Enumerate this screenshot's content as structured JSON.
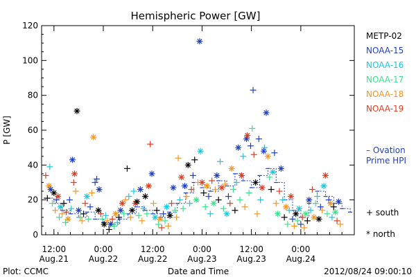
{
  "chart_data": {
    "type": "scatter",
    "title": "Hemispheric Power [GW]",
    "xlabel": "Date and Time",
    "ylabel": "P [GW]",
    "ylim": [
      0,
      120
    ],
    "yticks": [
      0,
      20,
      40,
      60,
      80,
      100,
      120
    ],
    "xlim_hours": [
      -3,
      73
    ],
    "xticks": [
      {
        "h": 0,
        "l1": "12:00",
        "l2": "Aug.21"
      },
      {
        "h": 12,
        "l1": "0:00",
        "l2": "Aug.22"
      },
      {
        "h": 24,
        "l1": "12:00",
        "l2": "Aug.22"
      },
      {
        "h": 36,
        "l1": "0:00",
        "l2": "Aug.23"
      },
      {
        "h": 48,
        "l1": "12:00",
        "l2": "Aug.23"
      },
      {
        "h": 60,
        "l1": "0:00",
        "l2": "Aug.24"
      }
    ],
    "series": [
      {
        "name": "METP-02",
        "color": "#000000"
      },
      {
        "name": "NOAA-15",
        "color": "#1f3fbf"
      },
      {
        "name": "NOAA-16",
        "color": "#18c8dc"
      },
      {
        "name": "NOAA-17",
        "color": "#3ce08c"
      },
      {
        "name": "NOAA-18",
        "color": "#f0962a"
      },
      {
        "name": "NOAA-19",
        "color": "#e03a1e"
      }
    ],
    "ovation": {
      "label1": "– Ovation",
      "label2": "Prime HPI",
      "color": "#1f3fbf",
      "points": [
        [
          -2,
          21
        ],
        [
          0,
          18
        ],
        [
          2,
          14
        ],
        [
          4,
          12
        ],
        [
          6,
          10
        ],
        [
          8,
          13
        ],
        [
          10,
          9
        ],
        [
          12,
          7
        ],
        [
          14,
          6
        ],
        [
          16,
          9
        ],
        [
          18,
          12
        ],
        [
          20,
          16
        ],
        [
          22,
          14
        ],
        [
          24,
          12
        ],
        [
          26,
          10
        ],
        [
          28,
          13
        ],
        [
          30,
          18
        ],
        [
          32,
          24
        ],
        [
          34,
          30
        ],
        [
          36,
          27
        ],
        [
          38,
          25
        ],
        [
          40,
          31
        ],
        [
          42,
          28
        ],
        [
          44,
          35
        ],
        [
          46,
          31
        ],
        [
          48,
          27
        ],
        [
          50,
          34
        ],
        [
          52,
          38
        ],
        [
          54,
          30
        ],
        [
          56,
          20
        ],
        [
          58,
          14
        ],
        [
          60,
          10
        ],
        [
          62,
          18
        ],
        [
          64,
          25
        ],
        [
          66,
          22
        ],
        [
          68,
          18
        ],
        [
          70,
          15
        ],
        [
          72,
          13
        ]
      ]
    },
    "markers": {
      "south_label": "+ south",
      "north_label": "* north"
    },
    "points": [
      {
        "x": -2.0,
        "y": 34,
        "s": 5,
        "m": "+"
      },
      {
        "x": -1.6,
        "y": 21,
        "s": 0,
        "m": "+"
      },
      {
        "x": -1.2,
        "y": 28,
        "s": 4,
        "m": "*"
      },
      {
        "x": -1.0,
        "y": 39,
        "s": 2,
        "m": "+"
      },
      {
        "x": -0.8,
        "y": 26,
        "s": 1,
        "m": "*"
      },
      {
        "x": -0.4,
        "y": 18,
        "s": 3,
        "m": "+"
      },
      {
        "x": 0.0,
        "y": 24,
        "s": 0,
        "m": "*"
      },
      {
        "x": 0.3,
        "y": 14,
        "s": 4,
        "m": "+"
      },
      {
        "x": 0.6,
        "y": 20,
        "s": 1,
        "m": "+"
      },
      {
        "x": 1.0,
        "y": 22,
        "s": 5,
        "m": "*"
      },
      {
        "x": 1.3,
        "y": 10,
        "s": 3,
        "m": "+"
      },
      {
        "x": 1.6,
        "y": 16,
        "s": 2,
        "m": "*"
      },
      {
        "x": 2.0,
        "y": 12,
        "s": 4,
        "m": "+"
      },
      {
        "x": 2.4,
        "y": 18,
        "s": 0,
        "m": "+"
      },
      {
        "x": 2.8,
        "y": 7,
        "s": 3,
        "m": "+"
      },
      {
        "x": 3.0,
        "y": 13,
        "s": 5,
        "m": "+"
      },
      {
        "x": 3.4,
        "y": 9,
        "s": 4,
        "m": "*"
      },
      {
        "x": 3.8,
        "y": 20,
        "s": 1,
        "m": "+"
      },
      {
        "x": 4.2,
        "y": 15,
        "s": 2,
        "m": "+"
      },
      {
        "x": 4.5,
        "y": 43,
        "s": 1,
        "m": "*"
      },
      {
        "x": 4.8,
        "y": 30,
        "s": 5,
        "m": "+"
      },
      {
        "x": 5.0,
        "y": 35,
        "s": 5,
        "m": "*"
      },
      {
        "x": 5.3,
        "y": 25,
        "s": 4,
        "m": "+"
      },
      {
        "x": 5.6,
        "y": 71,
        "s": 0,
        "m": "*"
      },
      {
        "x": 6.0,
        "y": 14,
        "s": 1,
        "m": "*"
      },
      {
        "x": 6.4,
        "y": 10,
        "s": 3,
        "m": "+"
      },
      {
        "x": 6.8,
        "y": 8,
        "s": 4,
        "m": "+"
      },
      {
        "x": 7.2,
        "y": 12,
        "s": 0,
        "m": "+"
      },
      {
        "x": 7.6,
        "y": 18,
        "s": 5,
        "m": "+"
      },
      {
        "x": 8.0,
        "y": 22,
        "s": 2,
        "m": "*"
      },
      {
        "x": 8.4,
        "y": 9,
        "s": 3,
        "m": "+"
      },
      {
        "x": 8.8,
        "y": 16,
        "s": 1,
        "m": "+"
      },
      {
        "x": 9.2,
        "y": 24,
        "s": 4,
        "m": "+"
      },
      {
        "x": 9.6,
        "y": 56,
        "s": 4,
        "m": "*"
      },
      {
        "x": 10.0,
        "y": 30,
        "s": 1,
        "m": "+"
      },
      {
        "x": 10.4,
        "y": 32,
        "s": 1,
        "m": "+"
      },
      {
        "x": 10.8,
        "y": 14,
        "s": 0,
        "m": "*"
      },
      {
        "x": 11.0,
        "y": 26,
        "s": 1,
        "m": "*"
      },
      {
        "x": 11.4,
        "y": 12,
        "s": 5,
        "m": "+"
      },
      {
        "x": 11.8,
        "y": 9,
        "s": 3,
        "m": "+"
      },
      {
        "x": 12.2,
        "y": 6,
        "s": 0,
        "m": "*"
      },
      {
        "x": 12.6,
        "y": 11,
        "s": 2,
        "m": "+"
      },
      {
        "x": 13.0,
        "y": 8,
        "s": 4,
        "m": "+"
      },
      {
        "x": 13.4,
        "y": 3,
        "s": 0,
        "m": "+"
      },
      {
        "x": 13.8,
        "y": 6,
        "s": 1,
        "m": "*"
      },
      {
        "x": 14.2,
        "y": 9,
        "s": 5,
        "m": "+"
      },
      {
        "x": 14.6,
        "y": 5,
        "s": 3,
        "m": "+"
      },
      {
        "x": 15.0,
        "y": 12,
        "s": 4,
        "m": "*"
      },
      {
        "x": 15.4,
        "y": 7,
        "s": 2,
        "m": "+"
      },
      {
        "x": 15.8,
        "y": 10,
        "s": 0,
        "m": "+"
      },
      {
        "x": 16.2,
        "y": 14,
        "s": 1,
        "m": "*"
      },
      {
        "x": 16.6,
        "y": 18,
        "s": 5,
        "m": "*"
      },
      {
        "x": 17.0,
        "y": 12,
        "s": 3,
        "m": "+"
      },
      {
        "x": 17.4,
        "y": 20,
        "s": 4,
        "m": "+"
      },
      {
        "x": 17.8,
        "y": 38,
        "s": 0,
        "m": "+"
      },
      {
        "x": 18.2,
        "y": 22,
        "s": 2,
        "m": "+"
      },
      {
        "x": 18.6,
        "y": 10,
        "s": 4,
        "m": "+"
      },
      {
        "x": 19.0,
        "y": 14,
        "s": 0,
        "m": "*"
      },
      {
        "x": 19.4,
        "y": 25,
        "s": 2,
        "m": "+"
      },
      {
        "x": 19.8,
        "y": 18,
        "s": 5,
        "m": "*"
      },
      {
        "x": 20.2,
        "y": 19,
        "s": 0,
        "m": "*"
      },
      {
        "x": 20.6,
        "y": 11,
        "s": 3,
        "m": "+"
      },
      {
        "x": 21.0,
        "y": 26,
        "s": 1,
        "m": "*"
      },
      {
        "x": 21.4,
        "y": 8,
        "s": 4,
        "m": "+"
      },
      {
        "x": 21.8,
        "y": 15,
        "s": 2,
        "m": "+"
      },
      {
        "x": 22.2,
        "y": 22,
        "s": 0,
        "m": "*"
      },
      {
        "x": 22.6,
        "y": 12,
        "s": 3,
        "m": "+"
      },
      {
        "x": 23.0,
        "y": 28,
        "s": 5,
        "m": "*"
      },
      {
        "x": 23.4,
        "y": 52,
        "s": 5,
        "m": "+"
      },
      {
        "x": 23.8,
        "y": 35,
        "s": 1,
        "m": "*"
      },
      {
        "x": 24.2,
        "y": 18,
        "s": 4,
        "m": "+"
      },
      {
        "x": 24.6,
        "y": 10,
        "s": 2,
        "m": "*"
      },
      {
        "x": 25.0,
        "y": 14,
        "s": 0,
        "m": "+"
      },
      {
        "x": 25.4,
        "y": 6,
        "s": 3,
        "m": "+"
      },
      {
        "x": 25.8,
        "y": 9,
        "s": 4,
        "m": "*"
      },
      {
        "x": 26.2,
        "y": 4,
        "s": 5,
        "m": "+"
      },
      {
        "x": 26.6,
        "y": 12,
        "s": 1,
        "m": "+"
      },
      {
        "x": 27.0,
        "y": 8,
        "s": 3,
        "m": "+"
      },
      {
        "x": 27.4,
        "y": 16,
        "s": 2,
        "m": "*"
      },
      {
        "x": 27.8,
        "y": 5,
        "s": 4,
        "m": "+"
      },
      {
        "x": 28.2,
        "y": 11,
        "s": 0,
        "m": "*"
      },
      {
        "x": 28.6,
        "y": 18,
        "s": 5,
        "m": "+"
      },
      {
        "x": 29.0,
        "y": 27,
        "s": 1,
        "m": "*"
      },
      {
        "x": 29.4,
        "y": 14,
        "s": 3,
        "m": "+"
      },
      {
        "x": 29.8,
        "y": 10,
        "s": 4,
        "m": "+"
      },
      {
        "x": 30.2,
        "y": 44,
        "s": 4,
        "m": "+"
      },
      {
        "x": 30.6,
        "y": 20,
        "s": 2,
        "m": "+"
      },
      {
        "x": 31.0,
        "y": 33,
        "s": 5,
        "m": "*"
      },
      {
        "x": 31.4,
        "y": 15,
        "s": 3,
        "m": "+"
      },
      {
        "x": 31.8,
        "y": 28,
        "s": 1,
        "m": "*"
      },
      {
        "x": 32.2,
        "y": 22,
        "s": 4,
        "m": "+"
      },
      {
        "x": 32.6,
        "y": 40,
        "s": 0,
        "m": "*"
      },
      {
        "x": 33.0,
        "y": 18,
        "s": 2,
        "m": "+"
      },
      {
        "x": 33.4,
        "y": 26,
        "s": 5,
        "m": "+"
      },
      {
        "x": 33.8,
        "y": 34,
        "s": 1,
        "m": "+"
      },
      {
        "x": 34.2,
        "y": 43,
        "s": 0,
        "m": "+"
      },
      {
        "x": 34.6,
        "y": 20,
        "s": 3,
        "m": "*"
      },
      {
        "x": 35.0,
        "y": 30,
        "s": 4,
        "m": "+"
      },
      {
        "x": 35.4,
        "y": 111,
        "s": 1,
        "m": "*"
      },
      {
        "x": 35.6,
        "y": 48,
        "s": 2,
        "m": "*"
      },
      {
        "x": 36.0,
        "y": 30,
        "s": 5,
        "m": "*"
      },
      {
        "x": 36.4,
        "y": 24,
        "s": 0,
        "m": "+"
      },
      {
        "x": 36.8,
        "y": 16,
        "s": 3,
        "m": "+"
      },
      {
        "x": 37.2,
        "y": 28,
        "s": 4,
        "m": "*"
      },
      {
        "x": 37.6,
        "y": 22,
        "s": 1,
        "m": "+"
      },
      {
        "x": 38.0,
        "y": 12,
        "s": 2,
        "m": "+"
      },
      {
        "x": 38.4,
        "y": 31,
        "s": 5,
        "m": "+"
      },
      {
        "x": 38.8,
        "y": 18,
        "s": 3,
        "m": "*"
      },
      {
        "x": 39.2,
        "y": 26,
        "s": 4,
        "m": "+"
      },
      {
        "x": 39.6,
        "y": 34,
        "s": 1,
        "m": "*"
      },
      {
        "x": 40.0,
        "y": 20,
        "s": 0,
        "m": "+"
      },
      {
        "x": 40.4,
        "y": 42,
        "s": 2,
        "m": "+"
      },
      {
        "x": 40.8,
        "y": 27,
        "s": 5,
        "m": "*"
      },
      {
        "x": 41.2,
        "y": 15,
        "s": 3,
        "m": "+"
      },
      {
        "x": 41.6,
        "y": 29,
        "s": 4,
        "m": "+"
      },
      {
        "x": 42.0,
        "y": 12,
        "s": 2,
        "m": "*"
      },
      {
        "x": 42.4,
        "y": 22,
        "s": 1,
        "m": "+"
      },
      {
        "x": 42.8,
        "y": 18,
        "s": 5,
        "m": "+"
      },
      {
        "x": 43.2,
        "y": 38,
        "s": 4,
        "m": "*"
      },
      {
        "x": 43.6,
        "y": 26,
        "s": 3,
        "m": "+"
      },
      {
        "x": 44.0,
        "y": 14,
        "s": 0,
        "m": "+"
      },
      {
        "x": 44.4,
        "y": 30,
        "s": 2,
        "m": "+"
      },
      {
        "x": 44.8,
        "y": 50,
        "s": 1,
        "m": "*"
      },
      {
        "x": 45.2,
        "y": 20,
        "s": 3,
        "m": "+"
      },
      {
        "x": 45.6,
        "y": 34,
        "s": 5,
        "m": "*"
      },
      {
        "x": 46.0,
        "y": 45,
        "s": 2,
        "m": "+"
      },
      {
        "x": 46.4,
        "y": 16,
        "s": 4,
        "m": "+"
      },
      {
        "x": 46.8,
        "y": 55,
        "s": 1,
        "m": "*"
      },
      {
        "x": 47.0,
        "y": 57,
        "s": 5,
        "m": "*"
      },
      {
        "x": 47.4,
        "y": 24,
        "s": 3,
        "m": "+"
      },
      {
        "x": 47.8,
        "y": 51,
        "s": 1,
        "m": "+"
      },
      {
        "x": 48.2,
        "y": 61,
        "s": 3,
        "m": "+"
      },
      {
        "x": 48.4,
        "y": 83,
        "s": 1,
        "m": "+"
      },
      {
        "x": 48.6,
        "y": 46,
        "s": 5,
        "m": "+"
      },
      {
        "x": 49.0,
        "y": 30,
        "s": 0,
        "m": "*"
      },
      {
        "x": 49.4,
        "y": 12,
        "s": 4,
        "m": "+"
      },
      {
        "x": 49.8,
        "y": 55,
        "s": 1,
        "m": "+"
      },
      {
        "x": 50.2,
        "y": 20,
        "s": 2,
        "m": "+"
      },
      {
        "x": 50.6,
        "y": 27,
        "s": 5,
        "m": "*"
      },
      {
        "x": 51.0,
        "y": 48,
        "s": 1,
        "m": "*"
      },
      {
        "x": 51.2,
        "y": 50,
        "s": 2,
        "m": "+"
      },
      {
        "x": 51.6,
        "y": 70,
        "s": 1,
        "m": "*"
      },
      {
        "x": 52.0,
        "y": 45,
        "s": 4,
        "m": "*"
      },
      {
        "x": 52.4,
        "y": 33,
        "s": 3,
        "m": "+"
      },
      {
        "x": 52.8,
        "y": 26,
        "s": 0,
        "m": "+"
      },
      {
        "x": 53.2,
        "y": 36,
        "s": 2,
        "m": "*"
      },
      {
        "x": 53.6,
        "y": 47,
        "s": 1,
        "m": "+"
      },
      {
        "x": 54.0,
        "y": 18,
        "s": 4,
        "m": "+"
      },
      {
        "x": 54.4,
        "y": 12,
        "s": 3,
        "m": "*"
      },
      {
        "x": 54.8,
        "y": 25,
        "s": 5,
        "m": "+"
      },
      {
        "x": 55.2,
        "y": 38,
        "s": 1,
        "m": "*"
      },
      {
        "x": 55.6,
        "y": 20,
        "s": 2,
        "m": "+"
      },
      {
        "x": 56.0,
        "y": 10,
        "s": 0,
        "m": "+"
      },
      {
        "x": 56.4,
        "y": 16,
        "s": 4,
        "m": "*"
      },
      {
        "x": 56.8,
        "y": 6,
        "s": 3,
        "m": "+"
      },
      {
        "x": 57.2,
        "y": 14,
        "s": 2,
        "m": "+"
      },
      {
        "x": 57.6,
        "y": 22,
        "s": 5,
        "m": "*"
      },
      {
        "x": 58.0,
        "y": 9,
        "s": 1,
        "m": "+"
      },
      {
        "x": 58.4,
        "y": 5,
        "s": 4,
        "m": "+"
      },
      {
        "x": 58.8,
        "y": 12,
        "s": 0,
        "m": "*"
      },
      {
        "x": 59.2,
        "y": 8,
        "s": 3,
        "m": "+"
      },
      {
        "x": 59.6,
        "y": 15,
        "s": 2,
        "m": "*"
      },
      {
        "x": 60.0,
        "y": 6,
        "s": 1,
        "m": "+"
      },
      {
        "x": 60.4,
        "y": 10,
        "s": 5,
        "m": "+"
      },
      {
        "x": 60.8,
        "y": 4,
        "s": 4,
        "m": "+"
      },
      {
        "x": 61.2,
        "y": 12,
        "s": 3,
        "m": "*"
      },
      {
        "x": 61.6,
        "y": 8,
        "s": 0,
        "m": "+"
      },
      {
        "x": 62.0,
        "y": 20,
        "s": 1,
        "m": "*"
      },
      {
        "x": 62.4,
        "y": 14,
        "s": 2,
        "m": "+"
      },
      {
        "x": 62.8,
        "y": 26,
        "s": 5,
        "m": "+"
      },
      {
        "x": 63.2,
        "y": 10,
        "s": 4,
        "m": "*"
      },
      {
        "x": 63.6,
        "y": 18,
        "s": 3,
        "m": "+"
      },
      {
        "x": 64.0,
        "y": 22,
        "s": 2,
        "m": "+"
      },
      {
        "x": 64.4,
        "y": 9,
        "s": 0,
        "m": "*"
      },
      {
        "x": 64.8,
        "y": 16,
        "s": 1,
        "m": "+"
      },
      {
        "x": 65.2,
        "y": 14,
        "s": 4,
        "m": "+"
      },
      {
        "x": 65.6,
        "y": 28,
        "s": 2,
        "m": "*"
      },
      {
        "x": 66.0,
        "y": 34,
        "s": 5,
        "m": "*"
      },
      {
        "x": 66.4,
        "y": 12,
        "s": 3,
        "m": "+"
      },
      {
        "x": 66.8,
        "y": 20,
        "s": 1,
        "m": "+"
      },
      {
        "x": 67.2,
        "y": 18,
        "s": 4,
        "m": "*"
      },
      {
        "x": 67.6,
        "y": 10,
        "s": 2,
        "m": "+"
      },
      {
        "x": 68.0,
        "y": 16,
        "s": 0,
        "m": "+"
      },
      {
        "x": 68.4,
        "y": 13,
        "s": 3,
        "m": "*"
      },
      {
        "x": 68.8,
        "y": 8,
        "s": 5,
        "m": "+"
      },
      {
        "x": 69.2,
        "y": 19,
        "s": 1,
        "m": "*"
      },
      {
        "x": 69.6,
        "y": 6,
        "s": 4,
        "m": "+"
      }
    ]
  },
  "footer": {
    "left": "Plot: CCMC",
    "right": "2012/08/24 09:00:10"
  }
}
